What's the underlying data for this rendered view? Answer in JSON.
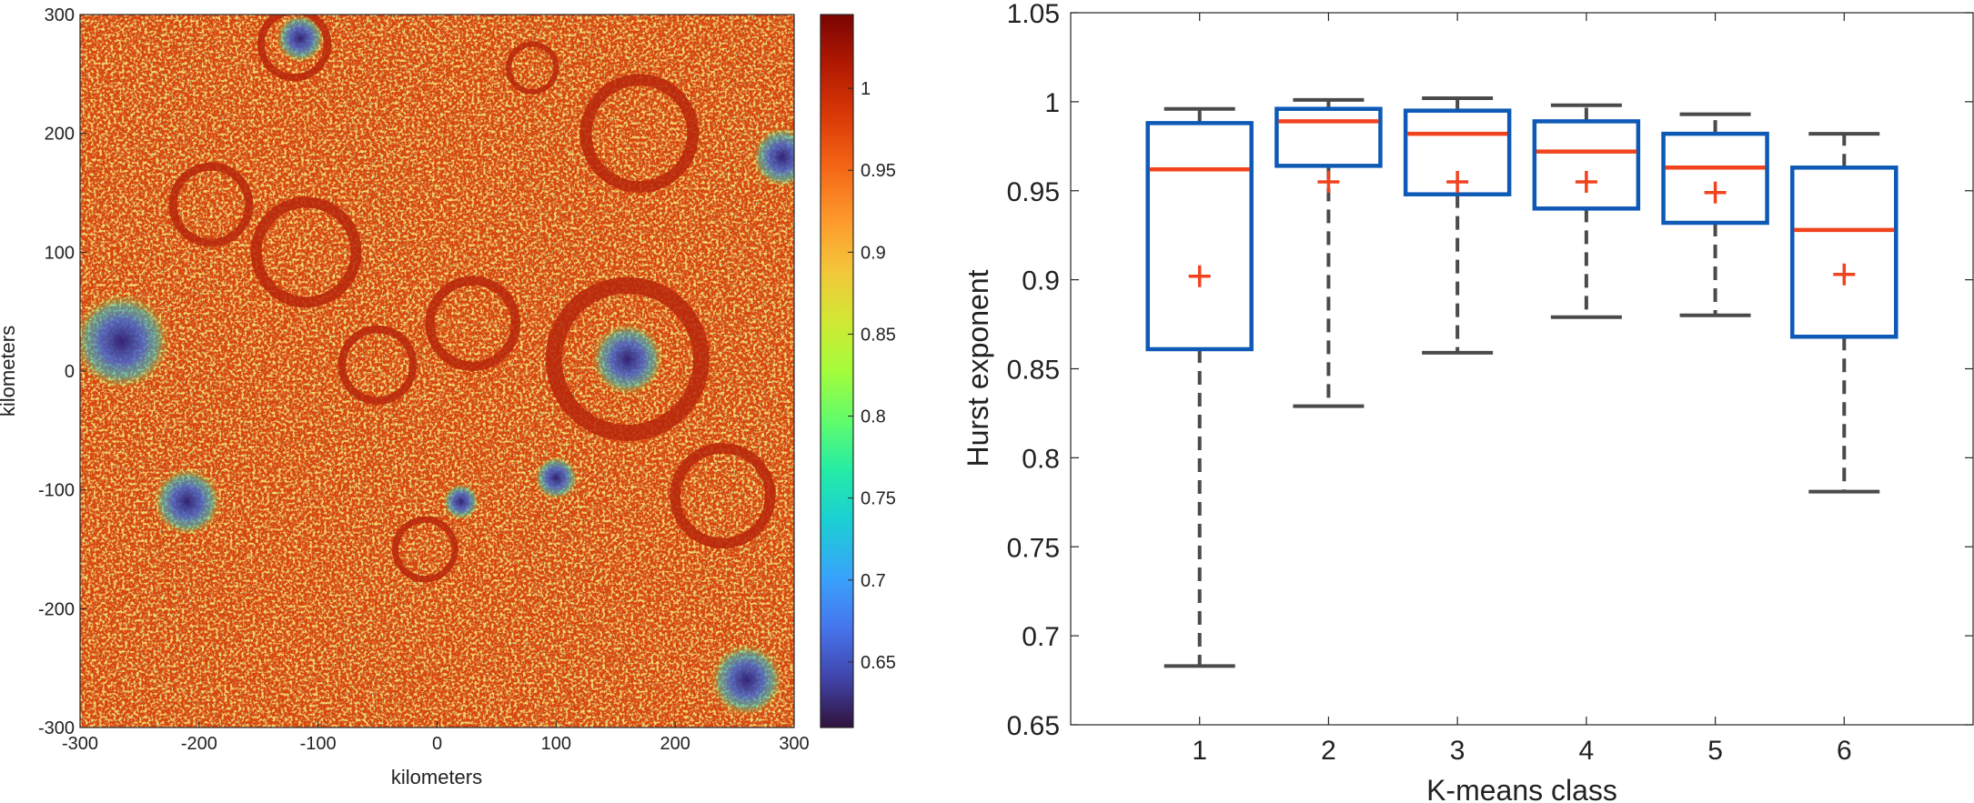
{
  "chart_data": [
    {
      "type": "heatmap",
      "title": "",
      "xlabel": "kilometers",
      "ylabel": "kilometers",
      "xlim": [
        -300,
        300
      ],
      "ylim": [
        -300,
        300
      ],
      "x_ticks": [
        "-300",
        "-200",
        "-100",
        "0",
        "100",
        "200",
        "300"
      ],
      "y_ticks": [
        "300",
        "200",
        "100",
        "0",
        "-100",
        "-200",
        "-300"
      ],
      "colorbar": {
        "colormap": "turbo",
        "range": [
          0.61,
          1.045
        ],
        "ticks": [
          "1",
          "0.95",
          "0.9",
          "0.85",
          "0.8",
          "0.75",
          "0.7",
          "0.65"
        ]
      },
      "features": [
        {
          "kind": "low-value patch",
          "x": -265,
          "y": 25,
          "r": 40
        },
        {
          "kind": "low-value patch",
          "x": 160,
          "y": 10,
          "r": 30
        },
        {
          "kind": "low-value patch",
          "x": 290,
          "y": 180,
          "r": 25
        },
        {
          "kind": "low-value patch",
          "x": -210,
          "y": -110,
          "r": 28
        },
        {
          "kind": "low-value patch",
          "x": -115,
          "y": 280,
          "r": 20
        },
        {
          "kind": "low-value patch",
          "x": 260,
          "y": -260,
          "r": 30
        },
        {
          "kind": "low-value patch",
          "x": 100,
          "y": -90,
          "r": 18
        },
        {
          "kind": "low-value patch",
          "x": 20,
          "y": -110,
          "r": 15
        },
        {
          "kind": "crater rim",
          "x": 160,
          "y": 10,
          "r": 62
        },
        {
          "kind": "crater rim",
          "x": 30,
          "y": 40,
          "r": 36
        },
        {
          "kind": "crater rim",
          "x": -190,
          "y": 140,
          "r": 32
        },
        {
          "kind": "crater rim",
          "x": -110,
          "y": 100,
          "r": 42
        },
        {
          "kind": "crater rim",
          "x": 170,
          "y": 200,
          "r": 45
        },
        {
          "kind": "crater rim",
          "x": -120,
          "y": 275,
          "r": 28
        },
        {
          "kind": "crater rim",
          "x": -10,
          "y": -150,
          "r": 25
        },
        {
          "kind": "crater rim",
          "x": 240,
          "y": -105,
          "r": 40
        },
        {
          "kind": "crater rim",
          "x": 80,
          "y": 255,
          "r": 20
        },
        {
          "kind": "crater rim",
          "x": -50,
          "y": 5,
          "r": 30
        }
      ]
    },
    {
      "type": "boxplot",
      "title": "",
      "xlabel": "K-means class",
      "ylabel": "Hurst exponent",
      "ylim": [
        0.65,
        1.05
      ],
      "y_ticks": [
        "1.05",
        "1",
        "0.95",
        "0.9",
        "0.85",
        "0.8",
        "0.75",
        "0.7",
        "0.65"
      ],
      "categories": [
        "1",
        "2",
        "3",
        "4",
        "5",
        "6"
      ],
      "boxes": [
        {
          "category": "1",
          "whisker_low": 0.683,
          "q1": 0.861,
          "median": 0.962,
          "q3": 0.988,
          "whisker_high": 0.996,
          "mean": 0.902
        },
        {
          "category": "2",
          "whisker_low": 0.829,
          "q1": 0.964,
          "median": 0.989,
          "q3": 0.996,
          "whisker_high": 1.001,
          "mean": 0.955
        },
        {
          "category": "3",
          "whisker_low": 0.859,
          "q1": 0.948,
          "median": 0.982,
          "q3": 0.995,
          "whisker_high": 1.002,
          "mean": 0.955
        },
        {
          "category": "4",
          "whisker_low": 0.879,
          "q1": 0.94,
          "median": 0.972,
          "q3": 0.989,
          "whisker_high": 0.998,
          "mean": 0.955
        },
        {
          "category": "5",
          "whisker_low": 0.88,
          "q1": 0.932,
          "median": 0.963,
          "q3": 0.982,
          "whisker_high": 0.993,
          "mean": 0.949
        },
        {
          "category": "6",
          "whisker_low": 0.781,
          "q1": 0.868,
          "median": 0.928,
          "q3": 0.963,
          "whisker_high": 0.982,
          "mean": 0.903
        }
      ],
      "colors": {
        "box": "#0d59b5",
        "median": "#f0431e",
        "mean": "#f0431e",
        "whisker": "#4a4a4a"
      }
    }
  ]
}
